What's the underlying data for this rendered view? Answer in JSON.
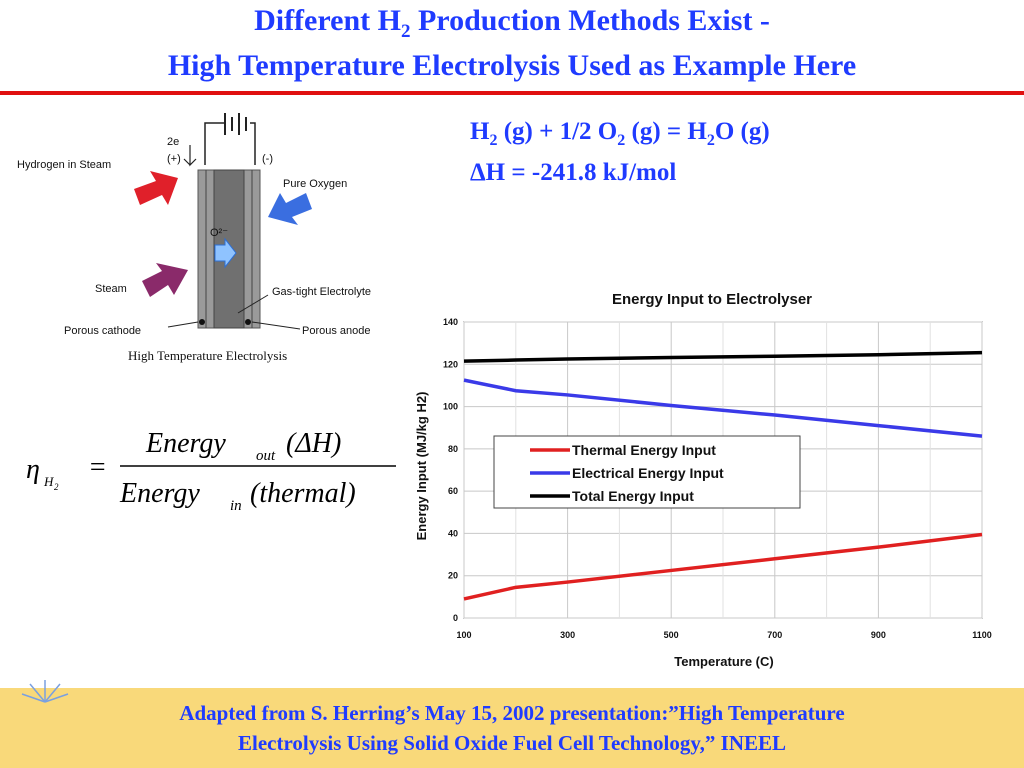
{
  "title": {
    "line1_a": "Different H",
    "line1_sub": "2",
    "line1_b": " Production Methods Exist -",
    "line2": "High Temperature Electrolysis Used as Example Here"
  },
  "reaction": {
    "line1_parts": [
      "H",
      "2",
      " (g) + 1/2 O",
      "2",
      " (g) = H",
      "2",
      "O (g)"
    ],
    "line2": "ΔH = -241.8 kJ/mol"
  },
  "diagram": {
    "label_2e": "2e",
    "label_plus": "(+)",
    "label_minus": "(-)",
    "label_hydrogen_steam": "Hydrogen in Steam",
    "label_pure_oxygen": "Pure Oxygen",
    "label_o2": "O²⁻",
    "label_steam": "Steam",
    "label_electrolyte": "Gas-tight Electrolyte",
    "label_cathode": "Porous cathode",
    "label_anode": "Porous anode",
    "caption": "High Temperature Electrolysis"
  },
  "formula": {
    "eta": "η",
    "eta_sub": "H",
    "eta_subsub": "2",
    "equals": "=",
    "num_word": "Energy",
    "num_sub": "out",
    "num_paren": "(ΔH)",
    "den_word": "Energy",
    "den_sub": "in",
    "den_paren": "(thermal)"
  },
  "chart_data": {
    "type": "line",
    "title": "Energy Input to Electrolyser",
    "xlabel": "Temperature (C)",
    "ylabel": "Energy Input (MJ/kg H2)",
    "xlim": [
      100,
      1100
    ],
    "ylim": [
      0,
      140
    ],
    "x_ticks": [
      100,
      300,
      500,
      700,
      900,
      1100
    ],
    "y_ticks": [
      0,
      20,
      40,
      60,
      80,
      100,
      120,
      140
    ],
    "grid": true,
    "legend_position": "center-right",
    "series": [
      {
        "name": "Thermal Energy Input",
        "color": "#e02020",
        "x": [
          100,
          200,
          300,
          500,
          700,
          900,
          1100
        ],
        "y": [
          9,
          14.5,
          17,
          22.5,
          28,
          33.5,
          39.5
        ]
      },
      {
        "name": "Electrical Energy Input",
        "color": "#3a3ae8",
        "x": [
          100,
          200,
          300,
          500,
          700,
          900,
          1100
        ],
        "y": [
          112.5,
          107.5,
          105.5,
          100.5,
          96,
          91,
          86
        ]
      },
      {
        "name": "Total Energy Input",
        "color": "#000000",
        "x": [
          100,
          200,
          300,
          500,
          700,
          900,
          1100
        ],
        "y": [
          121.5,
          122,
          122.5,
          123.2,
          123.8,
          124.5,
          125.5
        ]
      }
    ]
  },
  "footer": {
    "line1": "Adapted from S. Herring’s May 15, 2002 presentation:”High Temperature",
    "line2": "Electrolysis Using Solid Oxide Fuel Cell Technology,” INEEL"
  }
}
